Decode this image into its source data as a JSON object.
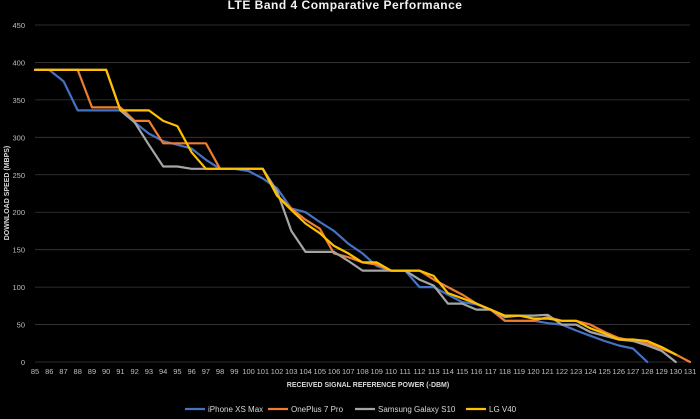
{
  "chart_data": {
    "type": "line",
    "title": "LTE  Band  4  Comparative  Performance",
    "xlabel": "RECEIVED SIGNAL REFERENCE POWER (-DBM)",
    "ylabel": "DOWNLOAD SPEED (MBPS)",
    "ylim": [
      0,
      450
    ],
    "yticks": [
      0,
      50,
      100,
      150,
      200,
      250,
      300,
      350,
      400,
      450
    ],
    "x": [
      85,
      86,
      87,
      88,
      89,
      90,
      91,
      92,
      93,
      94,
      95,
      96,
      97,
      98,
      99,
      100,
      101,
      102,
      103,
      104,
      105,
      106,
      107,
      108,
      109,
      110,
      111,
      112,
      113,
      114,
      115,
      116,
      117,
      118,
      119,
      120,
      121,
      122,
      123,
      124,
      125,
      126,
      127,
      128,
      129,
      130,
      131
    ],
    "grid": true,
    "legend_position": "bottom",
    "series": [
      {
        "name": "iPhone XS Max",
        "color": "#4472c4",
        "values": [
          390,
          390,
          375,
          336,
          336,
          336,
          336,
          320,
          305,
          295,
          290,
          285,
          270,
          258,
          258,
          255,
          245,
          232,
          205,
          200,
          187,
          175,
          158,
          145,
          128,
          122,
          122,
          100,
          100,
          90,
          80,
          77,
          70,
          55,
          55,
          55,
          52,
          50,
          42,
          35,
          28,
          22,
          18,
          0,
          null,
          null,
          null
        ]
      },
      {
        "name": "OnePlus 7 Pro",
        "color": "#ed7d31",
        "values": [
          390,
          390,
          390,
          390,
          340,
          340,
          340,
          322,
          322,
          292,
          292,
          292,
          292,
          258,
          258,
          258,
          258,
          222,
          205,
          190,
          178,
          145,
          140,
          133,
          130,
          122,
          122,
          122,
          110,
          100,
          90,
          78,
          70,
          55,
          55,
          55,
          60,
          55,
          55,
          50,
          40,
          32,
          28,
          25,
          18,
          10,
          0
        ]
      },
      {
        "name": "Samsung Galaxy S10",
        "color": "#a5a5a5",
        "values": [
          390,
          390,
          390,
          390,
          390,
          390,
          336,
          320,
          290,
          261,
          261,
          258,
          258,
          258,
          258,
          258,
          258,
          228,
          175,
          147,
          147,
          147,
          135,
          122,
          122,
          122,
          122,
          110,
          102,
          78,
          78,
          70,
          70,
          60,
          62,
          62,
          63,
          50,
          50,
          40,
          35,
          30,
          28,
          22,
          15,
          0,
          null
        ]
      },
      {
        "name": "LG V40",
        "color": "#ffc000",
        "values": [
          390,
          390,
          390,
          390,
          390,
          390,
          336,
          336,
          336,
          322,
          315,
          280,
          258,
          258,
          258,
          258,
          258,
          222,
          203,
          185,
          172,
          155,
          145,
          133,
          133,
          122,
          122,
          122,
          115,
          92,
          85,
          78,
          70,
          62,
          62,
          58,
          58,
          55,
          55,
          45,
          38,
          30,
          30,
          28,
          20,
          10,
          null
        ]
      }
    ]
  }
}
